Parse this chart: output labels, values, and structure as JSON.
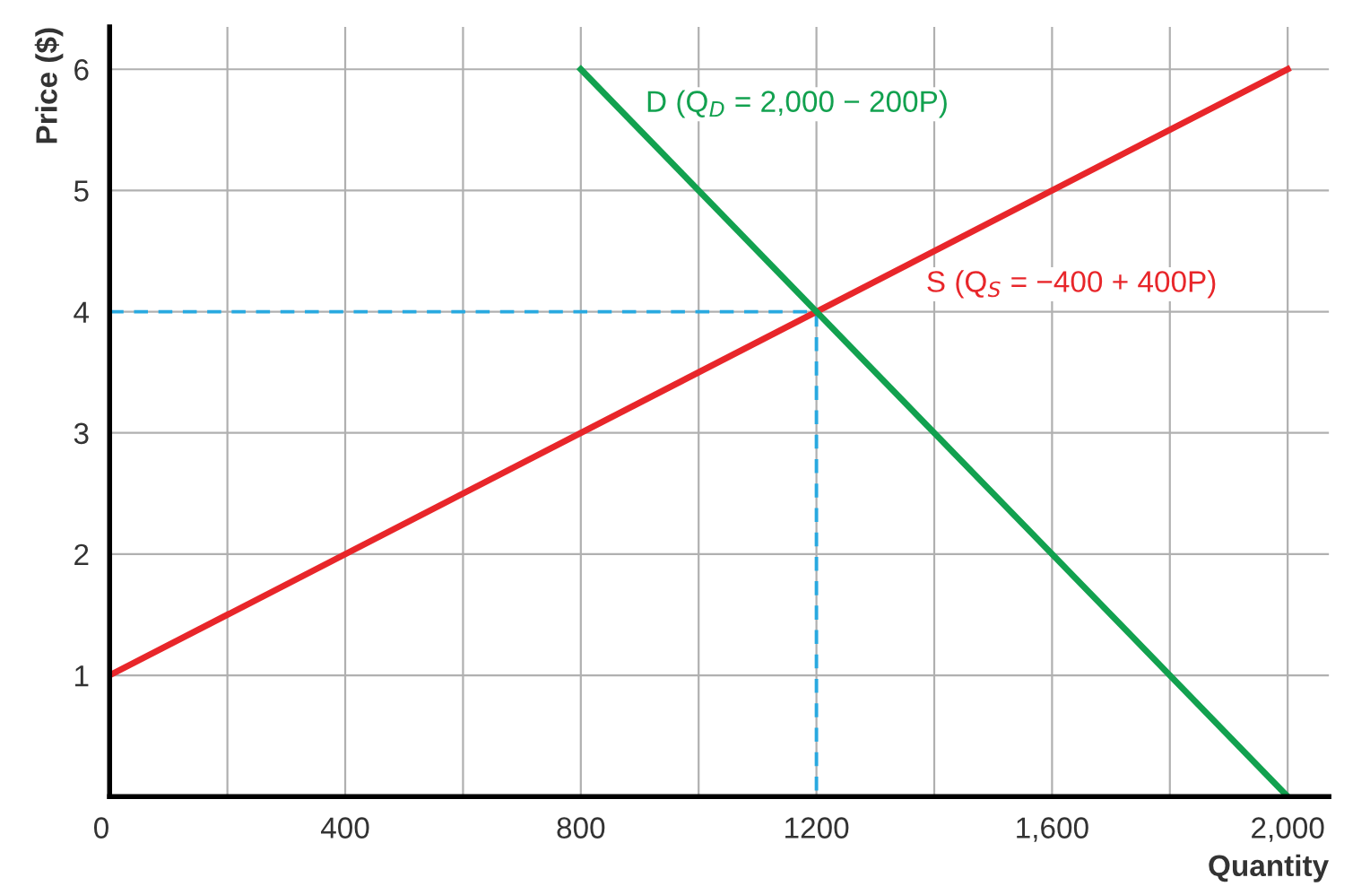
{
  "chart_data": {
    "type": "line",
    "xlabel": "Quantity",
    "ylabel": "Price ($)",
    "xlim": [
      0,
      2070
    ],
    "ylim": [
      0,
      6.35
    ],
    "xticks": [
      0,
      {
        "value": 200,
        "label": null
      },
      400,
      {
        "value": 600,
        "label": null
      },
      800,
      {
        "value": 1000,
        "label": null
      },
      1200,
      {
        "value": 1400,
        "label": null
      },
      {
        "value": 1600,
        "label": "1,600"
      },
      {
        "value": 1800,
        "label": null
      },
      {
        "value": 2000,
        "label": "2,000"
      }
    ],
    "yticks": [
      1,
      2,
      3,
      4,
      5,
      6
    ],
    "grid": true,
    "legend": false,
    "marker": "none",
    "series": [
      {
        "x": [
          0,
          1200,
          1200
        ],
        "values": [
          4,
          4,
          0
        ],
        "color": "#29a9e0",
        "line_style": "dashed"
      },
      {
        "name": "S (Q$_{S}$ = −400 + 400P)",
        "x": [
          0,
          1200,
          2000
        ],
        "values": [
          1,
          4,
          6
        ],
        "color": "#e8262a",
        "line_style": "solid"
      },
      {
        "name": "D (Q$_{D}$ = 2,000 − 200P)",
        "x": [
          800,
          2000
        ],
        "values": [
          6,
          0
        ],
        "color": "#12a14f",
        "line_style": "solid"
      }
    ]
  }
}
